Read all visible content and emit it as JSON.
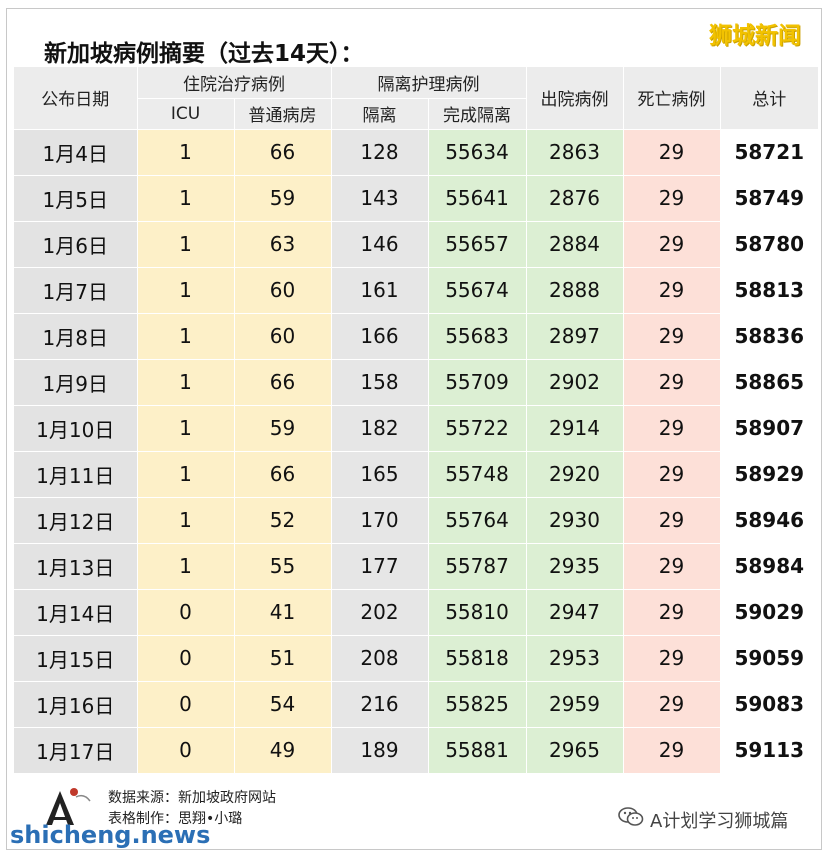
{
  "title": "新加坡病例摘要（过去14天）：",
  "brand": "狮城新闻",
  "header": {
    "date": "公布日期",
    "hospital_group": "住院治疗病例",
    "icu": "ICU",
    "general_ward": "普通病房",
    "isolation_group": "隔离护理病例",
    "isolation": "隔离",
    "completed_isolation": "完成隔离",
    "discharged": "出院病例",
    "deaths": "死亡病例",
    "total": "总计"
  },
  "rows": [
    {
      "date": "1月4日",
      "icu": "1",
      "ward": "66",
      "iso": "128",
      "done": "55634",
      "dis": "2863",
      "death": "29",
      "total": "58721"
    },
    {
      "date": "1月5日",
      "icu": "1",
      "ward": "59",
      "iso": "143",
      "done": "55641",
      "dis": "2876",
      "death": "29",
      "total": "58749"
    },
    {
      "date": "1月6日",
      "icu": "1",
      "ward": "63",
      "iso": "146",
      "done": "55657",
      "dis": "2884",
      "death": "29",
      "total": "58780"
    },
    {
      "date": "1月7日",
      "icu": "1",
      "ward": "60",
      "iso": "161",
      "done": "55674",
      "dis": "2888",
      "death": "29",
      "total": "58813"
    },
    {
      "date": "1月8日",
      "icu": "1",
      "ward": "60",
      "iso": "166",
      "done": "55683",
      "dis": "2897",
      "death": "29",
      "total": "58836"
    },
    {
      "date": "1月9日",
      "icu": "1",
      "ward": "66",
      "iso": "158",
      "done": "55709",
      "dis": "2902",
      "death": "29",
      "total": "58865"
    },
    {
      "date": "1月10日",
      "icu": "1",
      "ward": "59",
      "iso": "182",
      "done": "55722",
      "dis": "2914",
      "death": "29",
      "total": "58907"
    },
    {
      "date": "1月11日",
      "icu": "1",
      "ward": "66",
      "iso": "165",
      "done": "55748",
      "dis": "2920",
      "death": "29",
      "total": "58929"
    },
    {
      "date": "1月12日",
      "icu": "1",
      "ward": "52",
      "iso": "170",
      "done": "55764",
      "dis": "2930",
      "death": "29",
      "total": "58946"
    },
    {
      "date": "1月13日",
      "icu": "1",
      "ward": "55",
      "iso": "177",
      "done": "55787",
      "dis": "2935",
      "death": "29",
      "total": "58984"
    },
    {
      "date": "1月14日",
      "icu": "0",
      "ward": "41",
      "iso": "202",
      "done": "55810",
      "dis": "2947",
      "death": "29",
      "total": "59029"
    },
    {
      "date": "1月15日",
      "icu": "0",
      "ward": "51",
      "iso": "208",
      "done": "55818",
      "dis": "2953",
      "death": "29",
      "total": "59059"
    },
    {
      "date": "1月16日",
      "icu": "0",
      "ward": "54",
      "iso": "216",
      "done": "55825",
      "dis": "2959",
      "death": "29",
      "total": "59083"
    },
    {
      "date": "1月17日",
      "icu": "0",
      "ward": "49",
      "iso": "189",
      "done": "55881",
      "dis": "2965",
      "death": "29",
      "total": "59113"
    }
  ],
  "footer": {
    "source": "数据来源：新加坡政府网站",
    "maker": "表格制作：思翔•小璐"
  },
  "site": "shicheng.news",
  "wechat": "A计划学习狮城篇",
  "colors": {
    "hospital_bg": "#fdf0c8",
    "isolation_bg": "#e6e6e6",
    "completed_bg": "#dcefd3",
    "death_bg": "#fde0d8",
    "header_bg": "#ececec",
    "brand": "#f2c200",
    "site": "#2b6fb5"
  },
  "icons": {
    "logo": "a-logo-icon",
    "wechat": "wechat-icon"
  }
}
